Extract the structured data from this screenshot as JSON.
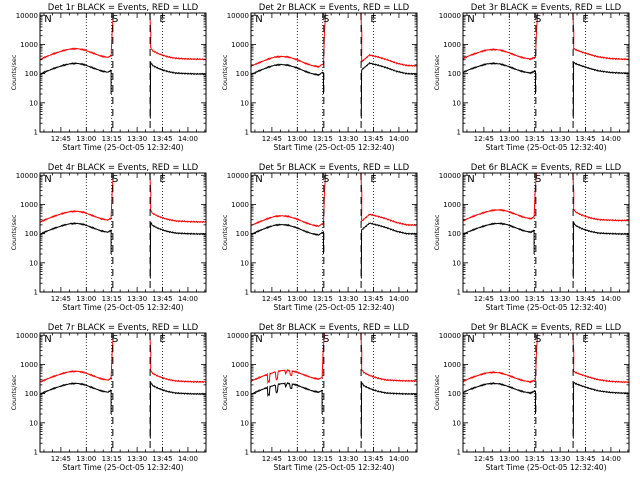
{
  "figure": {
    "xlabel": "Start Time (25-Oct-05 12:32:40)",
    "ylabel": "Counts/sec",
    "colors": {
      "events": "#000000",
      "lld": "#ff0000",
      "axes": "#000000"
    }
  },
  "chart_data": [
    {
      "type": "line",
      "title": "Det 1r BLACK = Events, RED = LLD",
      "profile": "a",
      "markers": [
        "N",
        "S",
        "E"
      ],
      "red_ratio": 3.2
    },
    {
      "type": "line",
      "title": "Det 2r BLACK = Events, RED = LLD",
      "profile": "b",
      "markers": [
        "N",
        "S",
        "E"
      ],
      "red_ratio": 1.9
    },
    {
      "type": "line",
      "title": "Det 3r BLACK = Events, RED = LLD",
      "profile": "c",
      "markers": [
        "N",
        "S",
        "E"
      ],
      "red_ratio": 3.0
    },
    {
      "type": "line",
      "title": "Det 4r BLACK = Events, RED = LLD",
      "profile": "a",
      "markers": [
        "N",
        "S",
        "E"
      ],
      "red_ratio": 2.6
    },
    {
      "type": "line",
      "title": "Det 5r BLACK = Events, RED = LLD",
      "profile": "b",
      "markers": [
        "N",
        "S",
        "E"
      ],
      "red_ratio": 2.0
    },
    {
      "type": "line",
      "title": "Det 6r BLACK = Events, RED = LLD",
      "profile": "a",
      "markers": [
        "N",
        "S",
        "E"
      ],
      "red_ratio": 2.9
    },
    {
      "type": "line",
      "title": "Det 7r BLACK = Events, RED = LLD",
      "profile": "a",
      "markers": [
        "N",
        "S",
        "E"
      ],
      "red_ratio": 2.6
    },
    {
      "type": "line",
      "title": "Det 8r BLACK = Events, RED = LLD",
      "profile": "d",
      "markers": [
        "N",
        "S",
        "E"
      ],
      "red_ratio": 2.8
    },
    {
      "type": "line",
      "title": "Det 9r BLACK = Events, RED = LLD",
      "profile": "c",
      "markers": [
        "N",
        "S",
        "E"
      ],
      "red_ratio": 2.4
    }
  ],
  "shared_axes": {
    "x_tick_labels": [
      "12:45",
      "13:00",
      "13:15",
      "13:30",
      "13:45",
      "14:00"
    ],
    "y_tick_labels": [
      "1",
      "10",
      "100",
      "1000",
      "10000"
    ],
    "y_scale": "log",
    "ylim": [
      1,
      12000
    ],
    "x_range_minutes_after_start": [
      0,
      98
    ],
    "x_tick_minutes_after_start": [
      12.33,
      27.33,
      42.33,
      57.33,
      72.33,
      87.33
    ],
    "dotted_vertical_lines_at": [
      "13:00",
      "13:15",
      "13:45"
    ],
    "dashed_vertical_lines_minutes_after_start": [
      43,
      65
    ]
  }
}
